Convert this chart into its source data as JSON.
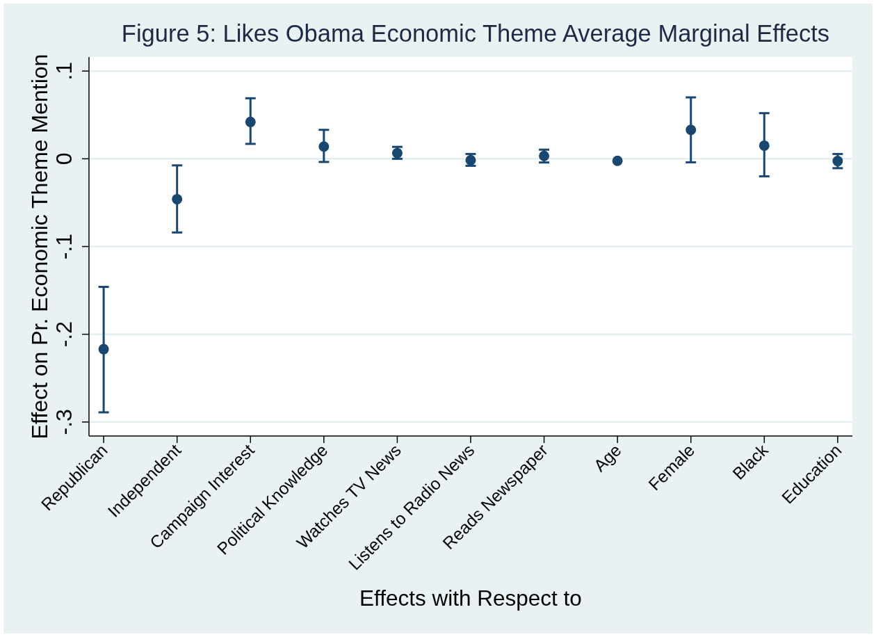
{
  "chart_data": {
    "type": "scatter",
    "title": "Figure 5: Likes Obama Economic Theme Average Marginal Effects",
    "xlabel": "Effects with Respect to",
    "ylabel": "Effect on Pr. Economic Theme Mention",
    "categories": [
      "Republican",
      "Independent",
      "Campaign Interest",
      "Political Knowledge",
      "Watches TV News",
      "Listens to Radio News",
      "Reads Newspaper",
      "Age",
      "Female",
      "Black",
      "Education"
    ],
    "values": [
      -0.217,
      -0.046,
      0.042,
      0.014,
      0.0065,
      -0.0016,
      0.0032,
      -0.0023,
      0.033,
      0.015,
      -0.0026
    ],
    "errors": [
      [
        -0.289,
        -0.146
      ],
      [
        -0.084,
        -0.0075
      ],
      [
        0.017,
        0.069
      ],
      [
        -0.0036,
        0.033
      ],
      [
        0.0,
        0.0136
      ],
      [
        -0.008,
        0.0055
      ],
      [
        -0.0042,
        0.0104
      ],
      null,
      [
        -0.004,
        0.07
      ],
      [
        -0.02,
        0.052
      ],
      [
        -0.0107,
        0.0055
      ]
    ],
    "color": "#1a476f",
    "marker": "circle",
    "grid": "y",
    "ylim": [
      -0.316,
      0.116
    ],
    "yticks": [
      {
        "value": -0.3,
        "label": "-.3"
      },
      {
        "value": -0.2,
        "label": "-.2"
      },
      {
        "value": -0.1,
        "label": "-.1"
      },
      0,
      {
        "value": 0.1,
        "label": ".1"
      }
    ]
  }
}
